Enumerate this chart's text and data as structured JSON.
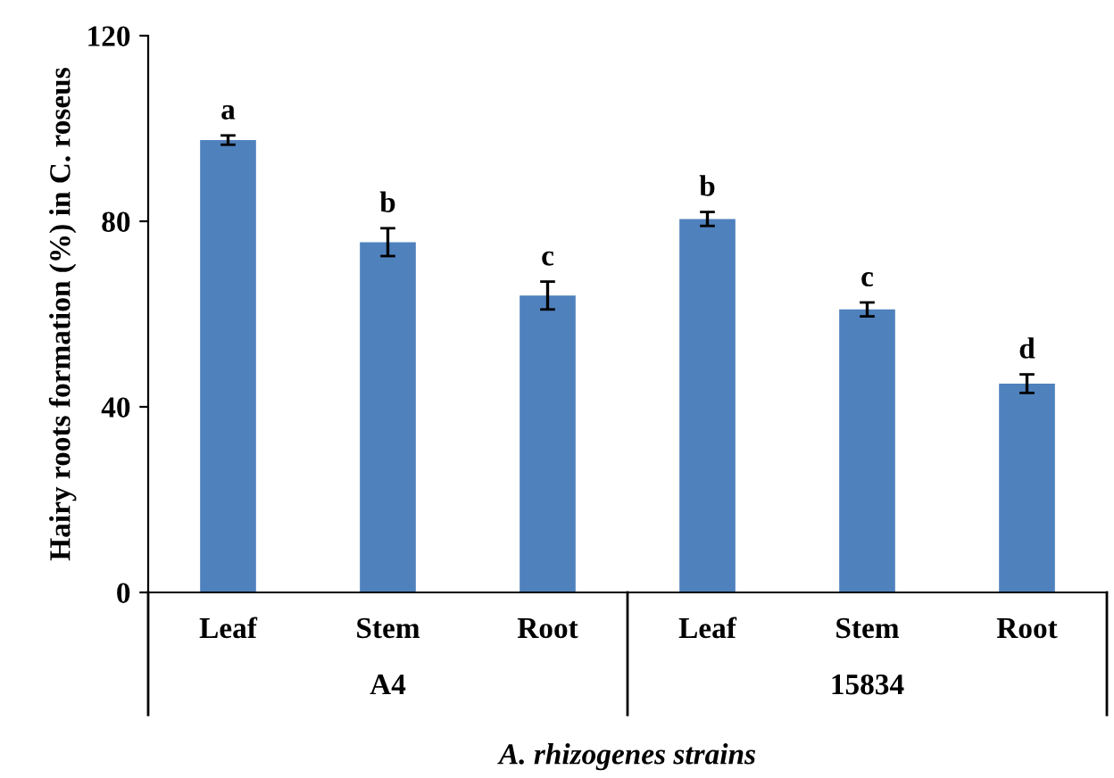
{
  "chart_data": {
    "type": "bar",
    "xlabel": "A. rhizogenes strains",
    "ylabel": "Hairy roots formation (%) in C. roseus",
    "categories": [
      "Leaf",
      "Stem",
      "Root",
      "Leaf",
      "Stem",
      "Root"
    ],
    "values": [
      97.5,
      75.5,
      64,
      80.5,
      61,
      45
    ],
    "errors": [
      1,
      3,
      3,
      1.5,
      1.5,
      2
    ],
    "value_labels": [
      "a",
      "b",
      "c",
      "b",
      "c",
      "d"
    ],
    "color": "#4f81bd",
    "annotations": [
      "A4",
      "15834"
    ],
    "ylim": [
      0,
      120
    ],
    "yticks": [
      0,
      40,
      80,
      120
    ],
    "grid": false
  }
}
